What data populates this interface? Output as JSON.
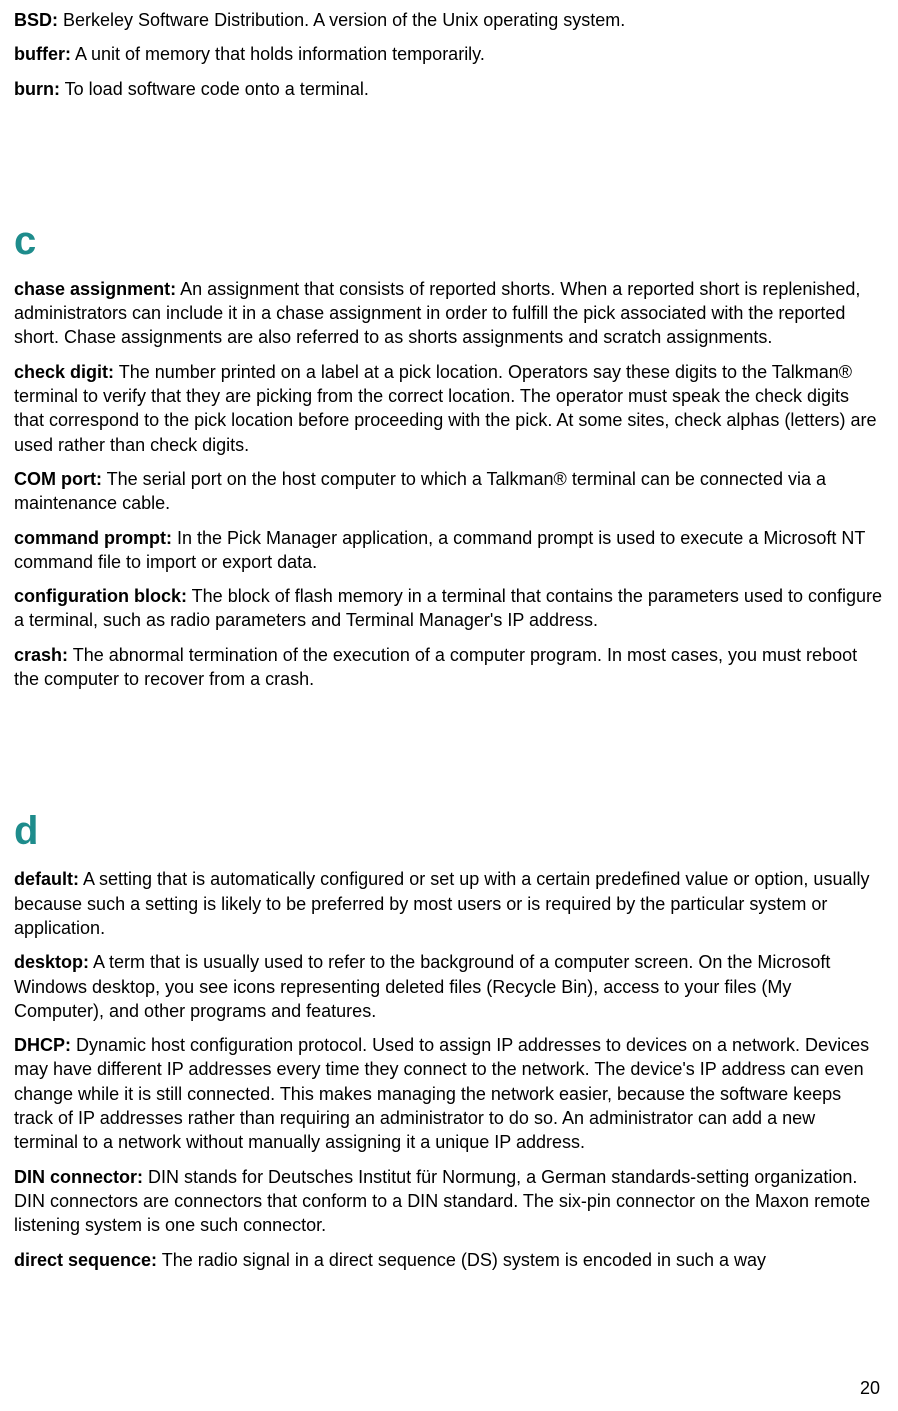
{
  "colors": {
    "heading": "#1e8c8c",
    "text": "#000000",
    "background": "#ffffff"
  },
  "typography": {
    "body_font": "Verdana, sans-serif",
    "body_size_pt": 13,
    "heading_size_pt": 30,
    "heading_weight": "bold",
    "term_weight": "bold"
  },
  "page_number": "20",
  "top_entries": [
    {
      "term": "BSD:",
      "def": " Berkeley Software Distribution. A version of the Unix operating system."
    },
    {
      "term": "buffer:",
      "def": " A unit of memory that holds information temporarily."
    },
    {
      "term": "burn:",
      "def": " To load software code onto a terminal."
    }
  ],
  "sections": [
    {
      "letter": "c",
      "entries": [
        {
          "term": "chase assignment:",
          "def": " An assignment that consists of reported shorts. When a reported short is replenished, administrators can include it in a chase assignment in order to fulfill the pick associated with the reported short. Chase assignments are also referred to as shorts assignments and scratch assignments."
        },
        {
          "term": "check digit:",
          "def": " The number printed on a label at a pick location. Operators say these digits to the Talkman® terminal to verify that they are picking from the correct location. The operator must speak the check digits that correspond to the pick location before proceeding with the pick. At some sites, check alphas (letters) are used rather than check digits."
        },
        {
          "term": "COM port:",
          "def": " The serial port on the host computer to which a Talkman® terminal can be connected via a maintenance cable."
        },
        {
          "term": "command prompt:",
          "def": " In the Pick Manager application, a command prompt is used to execute a Microsoft NT command file to import or export data."
        },
        {
          "term": "configuration block:",
          "def": " The block of flash memory in a terminal that contains the parameters used to configure a terminal, such as radio parameters and Terminal Manager's IP address."
        },
        {
          "term": "crash:",
          "def": " The abnormal termination of the execution of a computer program. In most cases, you must reboot the computer to recover from a crash."
        }
      ]
    },
    {
      "letter": "d",
      "entries": [
        {
          "term": "default:",
          "def": " A setting that is automatically configured or set up with a certain predefined value or option, usually because such a setting is likely to be preferred by most users or is required by the particular system or application."
        },
        {
          "term": "desktop:",
          "def": " A term that is usually used to refer to the background of a computer screen. On the Microsoft Windows desktop, you see icons representing deleted files (Recycle Bin), access to your files (My Computer), and other programs and features."
        },
        {
          "term": "DHCP:",
          "def": " Dynamic host configuration protocol. Used to assign IP addresses to devices on a network. Devices may have different IP addresses every time they connect to the network. The device's IP address can even change while it is still connected. This makes managing the network easier, because the software keeps track of IP addresses rather than requiring an administrator to do so. An administrator can add a new terminal to a network without manually assigning it a unique IP address."
        },
        {
          "term": "DIN connector:",
          "def": " DIN stands for Deutsches Institut für Normung, a German standards-setting organization. DIN connectors are connectors that conform to a DIN standard. The six-pin connector on the Maxon remote listening system is one such connector."
        },
        {
          "term": "direct sequence:",
          "def": " The radio signal in a direct sequence (DS) system is encoded in such a way"
        }
      ]
    }
  ]
}
